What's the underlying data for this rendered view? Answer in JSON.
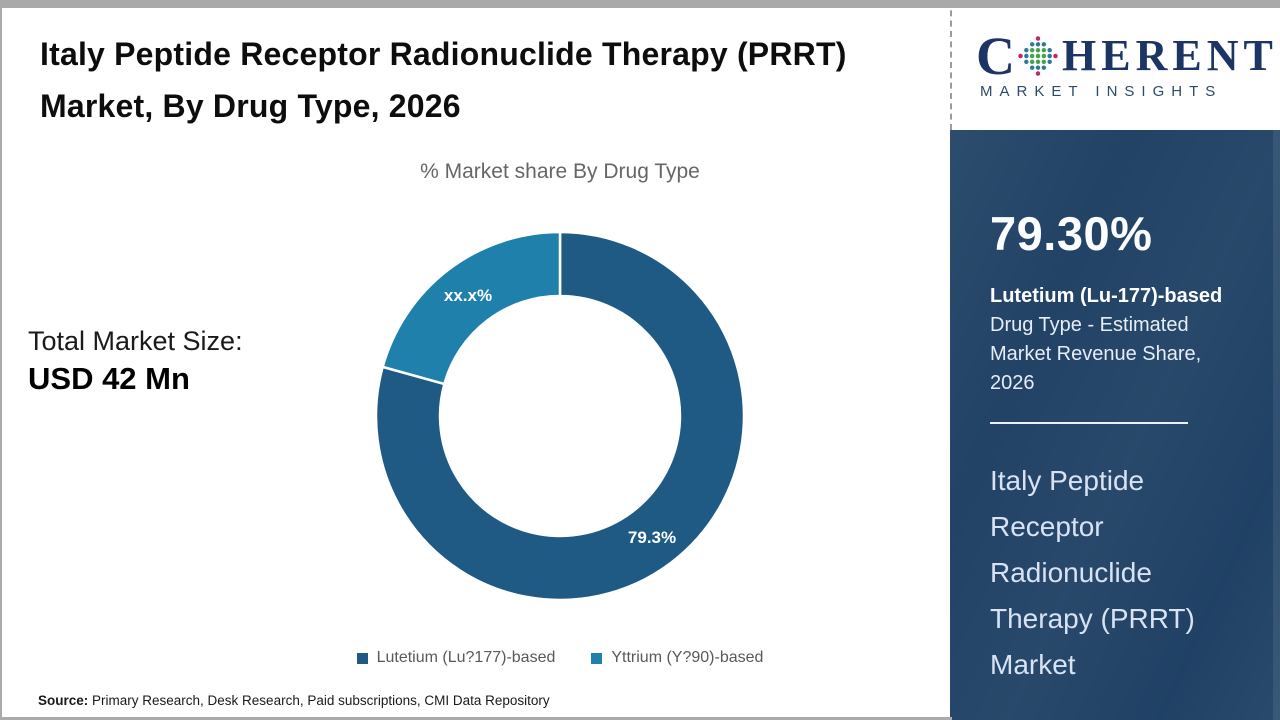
{
  "title": "Italy Peptide Receptor Radionuclide Therapy (PRRT) Market, By Drug Type, 2026",
  "subtitle": "% Market share By Drug Type",
  "total_market_size": {
    "label": "Total Market Size:",
    "value": "USD 42 Mn"
  },
  "source": {
    "label": "Source:",
    "text": " Primary Research, Desk Research, Paid subscriptions, CMI Data Repository"
  },
  "logo": {
    "letter_c": "C",
    "rest": "HERENT",
    "subtext": "MARKET INSIGHTS"
  },
  "sidebar": {
    "stat_value": "79.30%",
    "stat_label_bold": "Lutetium (Lu-177)-based",
    "stat_label_rest": "Drug Type - Estimated Market Revenue Share, 2026",
    "market_name": "Italy Peptide Receptor Radionuclide Therapy (PRRT) Market"
  },
  "colors": {
    "sidebar_navy": "#1d3f63",
    "slice_dark_blue": "#1e5a84",
    "slice_light_blue": "#2080ac",
    "logo_navy": "#1c3564",
    "legend_text_gray": "#595959"
  },
  "chart_data": {
    "type": "pie",
    "subtype": "donut",
    "title": "% Market share By Drug Type",
    "start_angle_deg": 0,
    "direction": "clockwise",
    "inner_radius_ratio": 0.652,
    "legend_position": "bottom",
    "series": [
      {
        "name": "Lutetium (Lu?177)-based",
        "value": 79.3,
        "label": "79.3%",
        "color": "#1e5a84"
      },
      {
        "name": "Yttrium (Y?90)-based",
        "value": 20.7,
        "label": "xx.x%",
        "color": "#2080ac"
      }
    ]
  }
}
